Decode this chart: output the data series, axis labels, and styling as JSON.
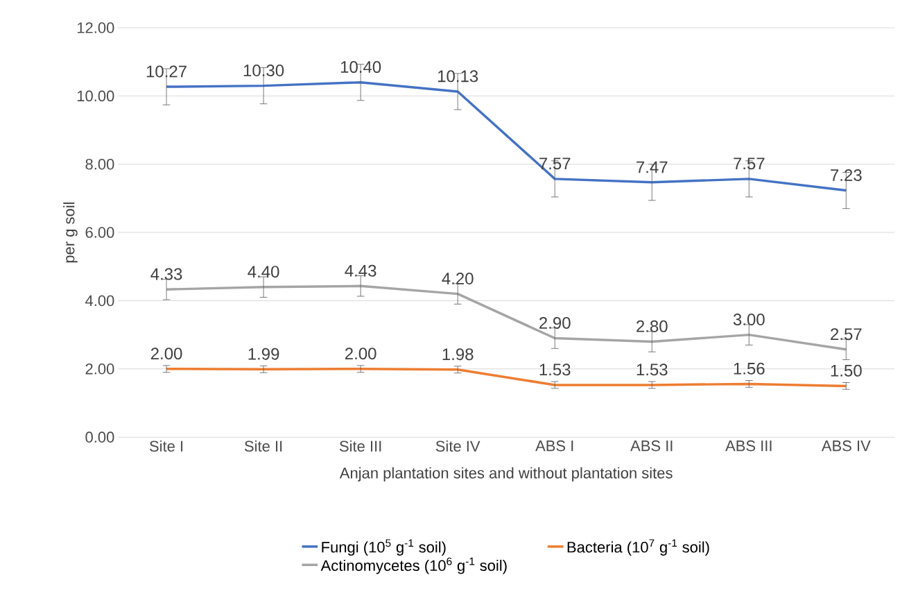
{
  "chart_data": {
    "type": "line",
    "categories": [
      "Site I",
      "Site II",
      "Site III",
      "Site IV",
      "ABS I",
      "ABS II",
      "ABS III",
      "ABS IV"
    ],
    "series": [
      {
        "name": "Fungi  (10$^{5}$ g$^{-1}$ soil)",
        "color": "#4472c4",
        "values": [
          10.27,
          10.3,
          10.4,
          10.13,
          7.57,
          7.47,
          7.57,
          7.23
        ],
        "errors": [
          0.53,
          0.53,
          0.53,
          0.53,
          0.53,
          0.53,
          0.53,
          0.53
        ],
        "value_labels": [
          "10.27",
          "10.30",
          "10.40",
          "10.13",
          "7.57",
          "7.47",
          "7.57",
          "7.23"
        ]
      },
      {
        "name": "Bacteria  (10$^{7}$ g$^{-1}$ soil)",
        "color": "#ed7d31",
        "values": [
          2.0,
          1.99,
          2.0,
          1.98,
          1.53,
          1.53,
          1.56,
          1.5
        ],
        "errors": [
          0.1,
          0.1,
          0.1,
          0.1,
          0.1,
          0.1,
          0.1,
          0.1
        ],
        "value_labels": [
          "2.00",
          "1.99",
          "2.00",
          "1.98",
          "1.53",
          "1.53",
          "1.56",
          "1.50"
        ]
      },
      {
        "name": "Actinomycetes  (10$^{6}$ g$^{-1}$ soil)",
        "color": "#a5a5a5",
        "values": [
          4.33,
          4.4,
          4.43,
          4.2,
          2.9,
          2.8,
          3.0,
          2.57
        ],
        "errors": [
          0.3,
          0.3,
          0.3,
          0.3,
          0.3,
          0.3,
          0.3,
          0.3
        ],
        "value_labels": [
          "4.33",
          "4.40",
          "4.43",
          "4.20",
          "2.90",
          "2.80",
          "3.00",
          "2.57"
        ]
      }
    ],
    "xlabel": "Anjan plantation sites and without plantation sites",
    "ylabel": "per g soil",
    "ylim": [
      0,
      12
    ],
    "yticks": [
      {
        "value": 0,
        "label": "0.00"
      },
      {
        "value": 2,
        "label": "2.00"
      },
      {
        "value": 4,
        "label": "4.00"
      },
      {
        "value": 6,
        "label": "6.00"
      },
      {
        "value": 8,
        "label": "8.00"
      },
      {
        "value": 10,
        "label": "10.00"
      },
      {
        "value": 12,
        "label": "12.00"
      }
    ],
    "grid": "y",
    "legend": "bottom"
  }
}
